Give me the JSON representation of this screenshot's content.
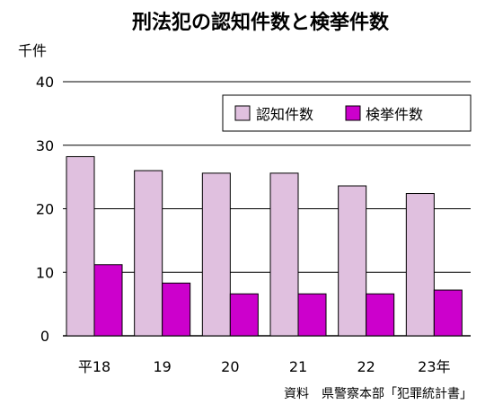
{
  "chart_data": {
    "type": "bar",
    "title": "刑法犯の認知件数と検挙件数",
    "ylabel": "千件",
    "categories": [
      "平18",
      "19",
      "20",
      "21",
      "22",
      "23年"
    ],
    "series": [
      {
        "name": "認知件数",
        "values": [
          28.2,
          26.0,
          25.6,
          25.6,
          23.6,
          22.4
        ],
        "color": "#e0c0df"
      },
      {
        "name": "検挙件数",
        "values": [
          11.2,
          8.3,
          6.6,
          6.6,
          6.6,
          7.2
        ],
        "color": "#cc00cc"
      }
    ],
    "ylim": [
      0,
      40
    ],
    "yticks": [
      0,
      10,
      20,
      30,
      40
    ],
    "grid": true,
    "legend_position": "top-right",
    "source": "資料　県警察本部「犯罪統計書」"
  }
}
